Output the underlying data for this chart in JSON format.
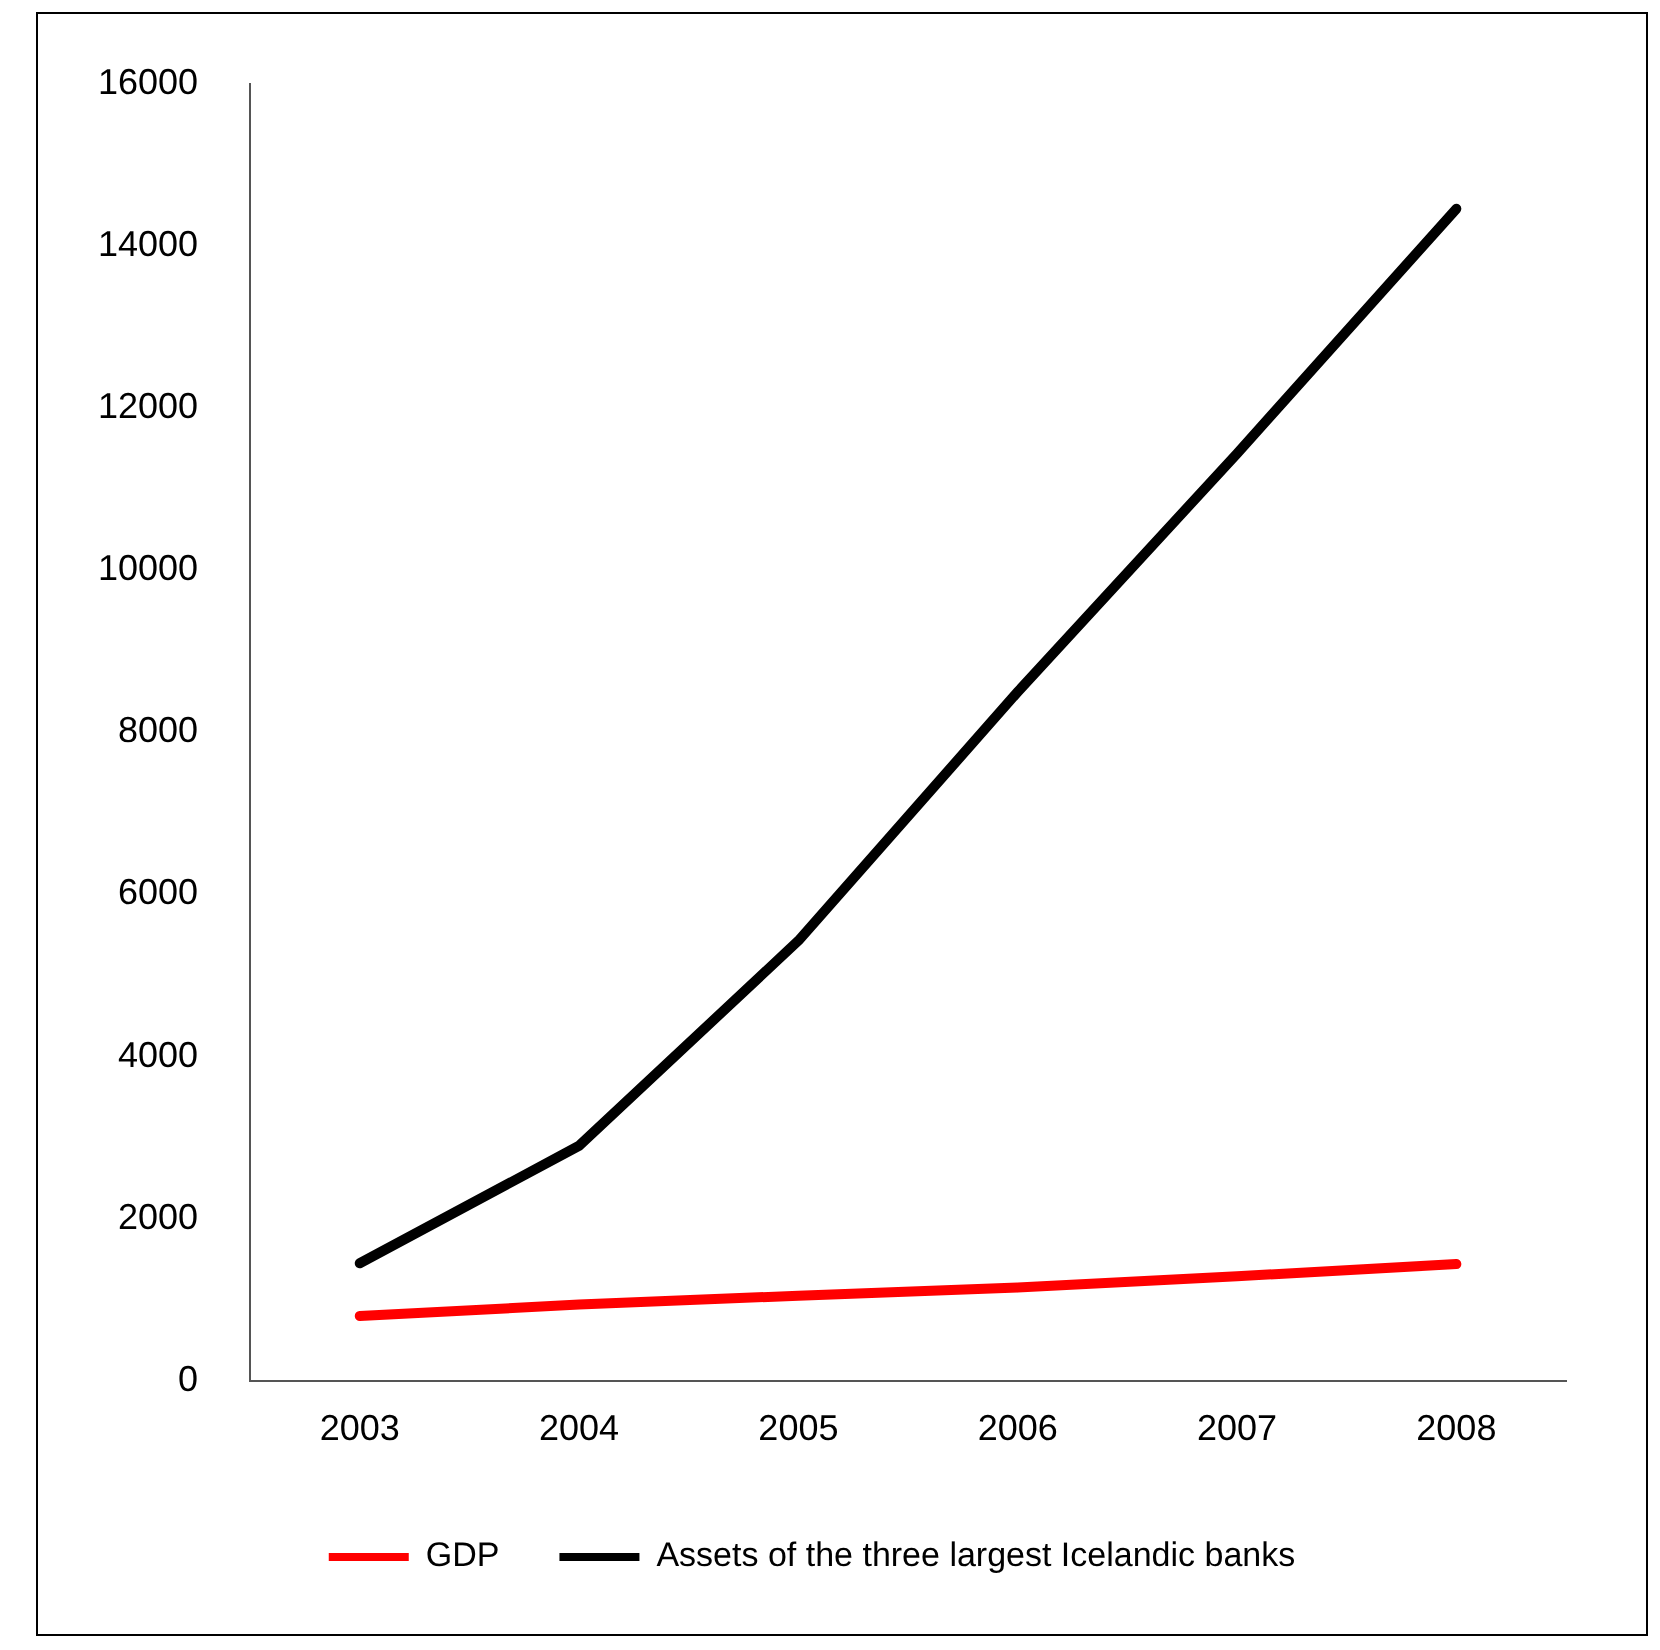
{
  "chart_data": {
    "type": "line",
    "categories": [
      "2003",
      "2004",
      "2005",
      "2006",
      "2007",
      "2008"
    ],
    "series": [
      {
        "name": "GDP",
        "color": "#ff0000",
        "values": [
          800,
          940,
          1050,
          1150,
          1290,
          1440
        ]
      },
      {
        "name": "Assets of the three largest Icelandic banks",
        "color": "#000000",
        "values": [
          1450,
          2900,
          5430,
          8500,
          11440,
          14460
        ]
      }
    ],
    "ylim": [
      0,
      16000
    ],
    "yticks": [
      0,
      2000,
      4000,
      6000,
      8000,
      10000,
      12000,
      14000,
      16000
    ],
    "grid": false,
    "legend": "bottom",
    "marker": "none",
    "line_style": "solid"
  }
}
